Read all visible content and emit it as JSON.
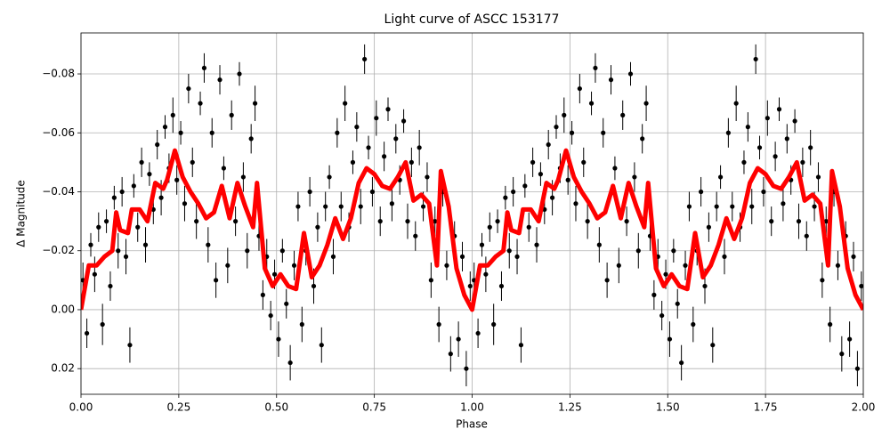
{
  "chart_data": {
    "type": "scatter",
    "title": "Light curve of ASCC 153177",
    "xlabel": "Phase",
    "ylabel": "Δ Magnitude",
    "xlim": [
      0,
      2
    ],
    "ylim": [
      -0.0939,
      0.0287
    ],
    "y_inverted": true,
    "grid": true,
    "xticks": [
      {
        "value": 0,
        "label": "0.00"
      },
      0.25,
      {
        "value": 0.5,
        "label": "0.50"
      },
      0.75,
      {
        "value": 1,
        "label": "1.00"
      },
      1.25,
      {
        "value": 1.5,
        "label": "1.50"
      },
      1.75,
      {
        "value": 2,
        "label": "2.00"
      }
    ],
    "yticks": [
      {
        "value": -0.08,
        "label": "−0.08"
      },
      {
        "value": -0.06,
        "label": "−0.06"
      },
      {
        "value": -0.04,
        "label": "−0.04"
      },
      {
        "value": -0.02,
        "label": "−0.02"
      },
      {
        "value": 0,
        "label": "0.00"
      },
      0.02
    ],
    "series": [
      {
        "type": "errorbar",
        "color": "#000000",
        "x": [
          0.005,
          0.015,
          0.025,
          0.035,
          0.045,
          0.055,
          0.065,
          0.075,
          0.085,
          0.095,
          0.105,
          0.115,
          0.125,
          0.135,
          0.145,
          0.155,
          0.165,
          0.175,
          0.185,
          0.195,
          0.205,
          0.215,
          0.225,
          0.235,
          0.245,
          0.255,
          0.265,
          0.275,
          0.285,
          0.295,
          0.305,
          0.315,
          0.325,
          0.335,
          0.345,
          0.355,
          0.365,
          0.375,
          0.385,
          0.395,
          0.405,
          0.415,
          0.425,
          0.435,
          0.445,
          0.455,
          0.465,
          0.475,
          0.485,
          0.495,
          0.505,
          0.515,
          0.525,
          0.535,
          0.545,
          0.555,
          0.565,
          0.575,
          0.585,
          0.595,
          0.605,
          0.615,
          0.625,
          0.635,
          0.645,
          0.655,
          0.665,
          0.675,
          0.685,
          0.695,
          0.705,
          0.715,
          0.725,
          0.735,
          0.745,
          0.755,
          0.765,
          0.775,
          0.785,
          0.795,
          0.805,
          0.815,
          0.825,
          0.835,
          0.845,
          0.855,
          0.865,
          0.875,
          0.885,
          0.895,
          0.905,
          0.915,
          0.925,
          0.935,
          0.945,
          0.955,
          0.965,
          0.975,
          0.985,
          0.995,
          1.005,
          1.015,
          1.025,
          1.035,
          1.045,
          1.055,
          1.065,
          1.075,
          1.085,
          1.095,
          1.105,
          1.115,
          1.125,
          1.135,
          1.145,
          1.155,
          1.165,
          1.175,
          1.185,
          1.195,
          1.205,
          1.215,
          1.225,
          1.235,
          1.245,
          1.255,
          1.265,
          1.275,
          1.285,
          1.295,
          1.305,
          1.315,
          1.325,
          1.335,
          1.345,
          1.355,
          1.365,
          1.375,
          1.385,
          1.395,
          1.405,
          1.415,
          1.425,
          1.435,
          1.445,
          1.455,
          1.465,
          1.475,
          1.485,
          1.495,
          1.505,
          1.515,
          1.525,
          1.535,
          1.545,
          1.555,
          1.565,
          1.575,
          1.585,
          1.595,
          1.605,
          1.615,
          1.625,
          1.635,
          1.645,
          1.655,
          1.665,
          1.675,
          1.685,
          1.695,
          1.705,
          1.715,
          1.725,
          1.735,
          1.745,
          1.755,
          1.765,
          1.775,
          1.785,
          1.795,
          1.805,
          1.815,
          1.825,
          1.835,
          1.845,
          1.855,
          1.865,
          1.875,
          1.885,
          1.895,
          1.905,
          1.915,
          1.925,
          1.935,
          1.945,
          1.955,
          1.965,
          1.975,
          1.985,
          1.995
        ],
        "values": [
          -0.01,
          0.008,
          -0.022,
          -0.012,
          -0.028,
          0.005,
          -0.03,
          -0.008,
          -0.038,
          -0.02,
          -0.04,
          -0.018,
          0.012,
          -0.042,
          -0.028,
          -0.05,
          -0.022,
          -0.046,
          -0.034,
          -0.056,
          -0.038,
          -0.062,
          -0.048,
          -0.066,
          -0.044,
          -0.06,
          -0.036,
          -0.075,
          -0.05,
          -0.03,
          -0.07,
          -0.082,
          -0.022,
          -0.06,
          -0.01,
          -0.078,
          -0.048,
          -0.015,
          -0.066,
          -0.03,
          -0.08,
          -0.045,
          -0.02,
          -0.058,
          -0.07,
          -0.025,
          -0.005,
          -0.018,
          0.002,
          -0.012,
          0.01,
          -0.02,
          -0.002,
          0.018,
          -0.015,
          -0.035,
          0.005,
          -0.02,
          -0.04,
          -0.008,
          -0.028,
          0.012,
          -0.035,
          -0.045,
          -0.018,
          -0.06,
          -0.035,
          -0.07,
          -0.028,
          -0.05,
          -0.062,
          -0.035,
          -0.085,
          -0.055,
          -0.04,
          -0.065,
          -0.03,
          -0.052,
          -0.068,
          -0.036,
          -0.058,
          -0.044,
          -0.064,
          -0.03,
          -0.05,
          -0.025,
          -0.055,
          -0.035,
          -0.045,
          -0.01,
          -0.03,
          0.005,
          -0.04,
          -0.015,
          0.015,
          -0.025,
          0.01,
          -0.018,
          0.02,
          -0.008,
          -0.01,
          0.008,
          -0.022,
          -0.012,
          -0.028,
          0.005,
          -0.03,
          -0.008,
          -0.038,
          -0.02,
          -0.04,
          -0.018,
          0.012,
          -0.042,
          -0.028,
          -0.05,
          -0.022,
          -0.046,
          -0.034,
          -0.056,
          -0.038,
          -0.062,
          -0.048,
          -0.066,
          -0.044,
          -0.06,
          -0.036,
          -0.075,
          -0.05,
          -0.03,
          -0.07,
          -0.082,
          -0.022,
          -0.06,
          -0.01,
          -0.078,
          -0.048,
          -0.015,
          -0.066,
          -0.03,
          -0.08,
          -0.045,
          -0.02,
          -0.058,
          -0.07,
          -0.025,
          -0.005,
          -0.018,
          0.002,
          -0.012,
          0.01,
          -0.02,
          -0.002,
          0.018,
          -0.015,
          -0.035,
          0.005,
          -0.02,
          -0.04,
          -0.008,
          -0.028,
          0.012,
          -0.035,
          -0.045,
          -0.018,
          -0.06,
          -0.035,
          -0.07,
          -0.028,
          -0.05,
          -0.062,
          -0.035,
          -0.085,
          -0.055,
          -0.04,
          -0.065,
          -0.03,
          -0.052,
          -0.068,
          -0.036,
          -0.058,
          -0.044,
          -0.064,
          -0.03,
          -0.05,
          -0.025,
          -0.055,
          -0.035,
          -0.045,
          -0.01,
          -0.03,
          0.005,
          -0.04,
          -0.015,
          0.015,
          -0.025,
          0.01,
          -0.018,
          0.02,
          -0.008
        ],
        "errors": [
          0.006,
          0.005,
          0.004,
          0.006,
          0.005,
          0.007,
          0.004,
          0.005,
          0.004,
          0.006,
          0.005,
          0.006,
          0.006,
          0.004,
          0.005,
          0.005,
          0.006,
          0.004,
          0.005,
          0.005,
          0.006,
          0.004,
          0.005,
          0.006,
          0.005,
          0.004,
          0.006,
          0.005,
          0.005,
          0.006,
          0.004,
          0.005,
          0.006,
          0.005,
          0.006,
          0.005,
          0.004,
          0.006,
          0.005,
          0.005,
          0.004,
          0.005,
          0.006,
          0.005,
          0.006,
          0.005,
          0.005,
          0.006,
          0.005,
          0.005,
          0.006,
          0.004,
          0.005,
          0.006,
          0.005,
          0.005,
          0.006,
          0.005,
          0.005,
          0.006,
          0.005,
          0.006,
          0.005,
          0.004,
          0.006,
          0.005,
          0.005,
          0.006,
          0.005,
          0.004,
          0.005,
          0.006,
          0.005,
          0.004,
          0.005,
          0.006,
          0.005,
          0.005,
          0.004,
          0.006,
          0.005,
          0.005,
          0.004,
          0.006,
          0.005,
          0.005,
          0.006,
          0.005,
          0.005,
          0.006,
          0.005,
          0.006,
          0.005,
          0.005,
          0.006,
          0.005,
          0.006,
          0.005,
          0.006,
          0.005,
          0.006,
          0.005,
          0.004,
          0.006,
          0.005,
          0.007,
          0.004,
          0.005,
          0.004,
          0.006,
          0.005,
          0.006,
          0.006,
          0.004,
          0.005,
          0.005,
          0.006,
          0.004,
          0.005,
          0.005,
          0.006,
          0.004,
          0.005,
          0.006,
          0.005,
          0.004,
          0.006,
          0.005,
          0.005,
          0.006,
          0.004,
          0.005,
          0.006,
          0.005,
          0.006,
          0.005,
          0.004,
          0.006,
          0.005,
          0.005,
          0.004,
          0.005,
          0.006,
          0.005,
          0.006,
          0.005,
          0.005,
          0.006,
          0.005,
          0.005,
          0.006,
          0.004,
          0.005,
          0.006,
          0.005,
          0.005,
          0.006,
          0.005,
          0.005,
          0.006,
          0.005,
          0.006,
          0.005,
          0.004,
          0.006,
          0.005,
          0.005,
          0.006,
          0.005,
          0.004,
          0.005,
          0.006,
          0.005,
          0.004,
          0.005,
          0.006,
          0.005,
          0.005,
          0.004,
          0.006,
          0.005,
          0.005,
          0.004,
          0.006,
          0.005,
          0.005,
          0.006,
          0.005,
          0.005,
          0.006,
          0.005,
          0.006,
          0.005,
          0.005,
          0.006,
          0.005,
          0.006,
          0.005,
          0.006,
          0.005
        ]
      },
      {
        "type": "line",
        "color": "#ff0000",
        "x": [
          0,
          0.02,
          0.04,
          0.06,
          0.08,
          0.09,
          0.1,
          0.12,
          0.13,
          0.15,
          0.17,
          0.19,
          0.21,
          0.22,
          0.24,
          0.26,
          0.28,
          0.3,
          0.32,
          0.34,
          0.36,
          0.38,
          0.4,
          0.42,
          0.44,
          0.45,
          0.47,
          0.49,
          0.51,
          0.53,
          0.55,
          0.57,
          0.59,
          0.61,
          0.63,
          0.65,
          0.67,
          0.69,
          0.71,
          0.73,
          0.75,
          0.77,
          0.79,
          0.81,
          0.83,
          0.85,
          0.87,
          0.89,
          0.91,
          0.92,
          0.94,
          0.96,
          0.98,
          1,
          1.02,
          1.04,
          1.06,
          1.08,
          1.09,
          1.1,
          1.12,
          1.13,
          1.15,
          1.17,
          1.19,
          1.21,
          1.22,
          1.24,
          1.26,
          1.28,
          1.3,
          1.32,
          1.34,
          1.36,
          1.38,
          1.4,
          1.42,
          1.44,
          1.45,
          1.47,
          1.49,
          1.51,
          1.53,
          1.55,
          1.57,
          1.59,
          1.61,
          1.63,
          1.65,
          1.67,
          1.69,
          1.71,
          1.73,
          1.75,
          1.77,
          1.79,
          1.81,
          1.83,
          1.85,
          1.87,
          1.89,
          1.91,
          1.92,
          1.94,
          1.96,
          1.98,
          2
        ],
        "values": [
          0,
          -0.015,
          -0.015,
          -0.018,
          -0.02,
          -0.033,
          -0.027,
          -0.026,
          -0.034,
          -0.034,
          -0.03,
          -0.043,
          -0.041,
          -0.044,
          -0.054,
          -0.045,
          -0.04,
          -0.036,
          -0.031,
          -0.033,
          -0.042,
          -0.031,
          -0.043,
          -0.035,
          -0.028,
          -0.043,
          -0.014,
          -0.008,
          -0.012,
          -0.008,
          -0.007,
          -0.026,
          -0.011,
          -0.015,
          -0.022,
          -0.031,
          -0.024,
          -0.031,
          -0.043,
          -0.048,
          -0.046,
          -0.042,
          -0.041,
          -0.045,
          -0.05,
          -0.037,
          -0.039,
          -0.036,
          -0.015,
          -0.047,
          -0.035,
          -0.014,
          -0.005,
          0,
          -0.015,
          -0.015,
          -0.018,
          -0.02,
          -0.033,
          -0.027,
          -0.026,
          -0.034,
          -0.034,
          -0.03,
          -0.043,
          -0.041,
          -0.044,
          -0.054,
          -0.045,
          -0.04,
          -0.036,
          -0.031,
          -0.033,
          -0.042,
          -0.031,
          -0.043,
          -0.035,
          -0.028,
          -0.043,
          -0.014,
          -0.008,
          -0.012,
          -0.008,
          -0.007,
          -0.026,
          -0.011,
          -0.015,
          -0.022,
          -0.031,
          -0.024,
          -0.031,
          -0.043,
          -0.048,
          -0.046,
          -0.042,
          -0.041,
          -0.045,
          -0.05,
          -0.037,
          -0.039,
          -0.036,
          -0.015,
          -0.047,
          -0.035,
          -0.014,
          -0.005,
          0
        ]
      }
    ]
  }
}
